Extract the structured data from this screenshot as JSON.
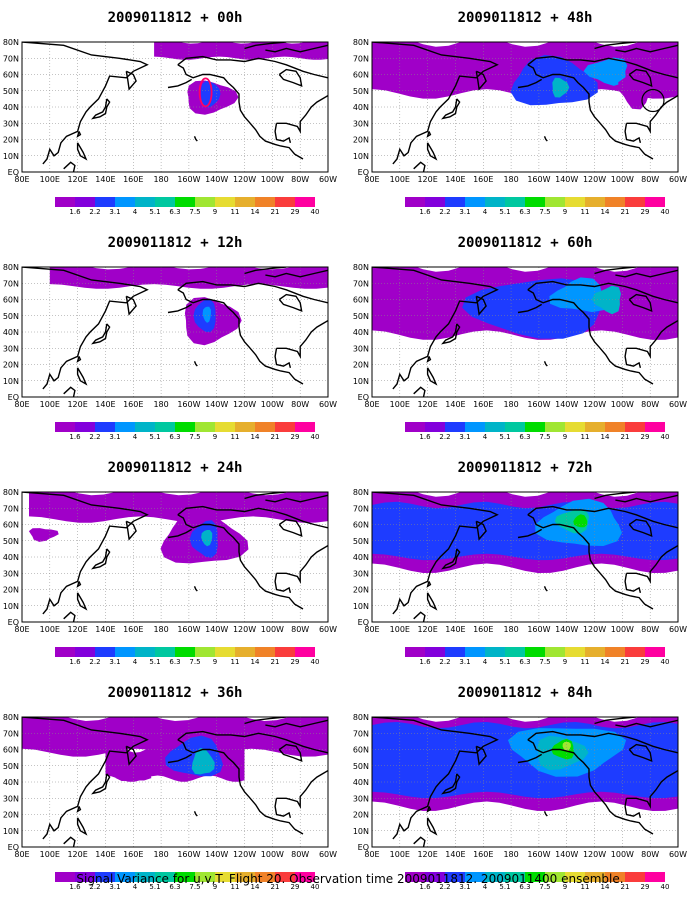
{
  "panels": [
    {
      "title": "2009011812 + 00h",
      "level": 0
    },
    {
      "title": "2009011812 + 48h",
      "level": 4
    },
    {
      "title": "2009011812 + 12h",
      "level": 1
    },
    {
      "title": "2009011812 + 60h",
      "level": 5
    },
    {
      "title": "2009011812 + 24h",
      "level": 2
    },
    {
      "title": "2009011812 + 72h",
      "level": 6
    },
    {
      "title": "2009011812 + 36h",
      "level": 3
    },
    {
      "title": "2009011812 + 84h",
      "level": 7
    }
  ],
  "lon_labels": [
    "80E",
    "100E",
    "120E",
    "140E",
    "160E",
    "180",
    "160W",
    "140W",
    "120W",
    "100W",
    "80W",
    "60W"
  ],
  "lat_labels": [
    "80N",
    "70N",
    "60N",
    "50N",
    "40N",
    "30N",
    "20N",
    "10N",
    "EQ"
  ],
  "colorbar": {
    "colors": [
      "#a000c8",
      "#8200dc",
      "#1e3cff",
      "#0096ff",
      "#00b4c8",
      "#00c8a0",
      "#00dc00",
      "#a0e632",
      "#e6dc32",
      "#e6af2d",
      "#f08228",
      "#fa3c3c",
      "#ff00a0"
    ],
    "labels": [
      "1.6",
      "2.2",
      "3.1",
      "4",
      "5.1",
      "6.3",
      "7.5",
      "9",
      "11",
      "14",
      "21",
      "29",
      "40"
    ]
  },
  "caption": "Signal Variance for u,v,T. Flight 20. Observation time 2009011812. 2009011400 ensemble."
}
